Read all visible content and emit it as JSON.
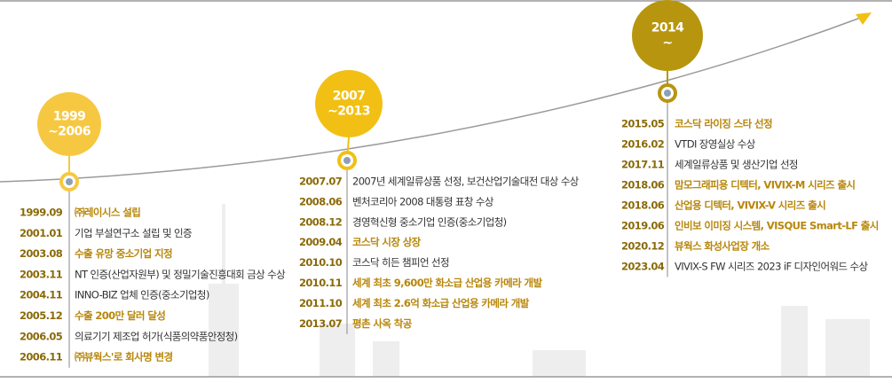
{
  "timeline": {
    "periods": [
      {
        "label": [
          "1999",
          "~2006"
        ],
        "color": "#f6c842",
        "entries": [
          {
            "date": "1999.09",
            "text": "㈜레이시스 설립",
            "highlight": true
          },
          {
            "date": "2001.01",
            "text": "기업 부설연구소 설립 및 인증",
            "highlight": false
          },
          {
            "date": "2003.08",
            "text": "수출 유망 중소기업 지정",
            "highlight": true
          },
          {
            "date": "2003.11",
            "text": "NT 인증(산업자원부) 및 정밀기술진흥대회 금상 수상",
            "highlight": false
          },
          {
            "date": "2004.11",
            "text": "INNO-BIZ 업체 인증(중소기업청)",
            "highlight": false
          },
          {
            "date": "2005.12",
            "text": "수출 200만 달러 달성",
            "highlight": true
          },
          {
            "date": "2006.05",
            "text": "의료기기 제조업 허가(식품의약품안정청)",
            "highlight": false
          },
          {
            "date": "2006.11",
            "text": "㈜뷰웍스'로 회사명 변경",
            "highlight": true
          }
        ]
      },
      {
        "label": [
          "2007",
          "~2013"
        ],
        "color": "#f2c014",
        "entries": [
          {
            "date": "2007.07",
            "text": "2007년 세계일류상품 선정, 보건산업기술대전 대상 수상",
            "highlight": false
          },
          {
            "date": "2008.06",
            "text": "벤처코리아 2008 대통령 표창 수상",
            "highlight": false
          },
          {
            "date": "2008.12",
            "text": "경영혁신형 중소기업 인증(중소기업청)",
            "highlight": false
          },
          {
            "date": "2009.04",
            "text": "코스닥 시장 상장",
            "highlight": true
          },
          {
            "date": "2010.10",
            "text": "코스닥 히든 챔피언 선정",
            "highlight": false
          },
          {
            "date": "2010.11",
            "text": "세계 최초 9,600만 화소급 산업용 카메라 개발",
            "highlight": true
          },
          {
            "date": "2011.10",
            "text": "세계 최초 2.6억 화소급 산업용 카메라 개발",
            "highlight": true
          },
          {
            "date": "2013.07",
            "text": "평촌 사옥 착공",
            "highlight": true
          }
        ]
      },
      {
        "label": [
          "2014",
          "~"
        ],
        "color": "#b8950f",
        "entries": [
          {
            "date": "2015.05",
            "text": "코스닥 라이징 스타 선정",
            "highlight": true
          },
          {
            "date": "2016.02",
            "text": "VTDI 장영실상 수상",
            "highlight": false
          },
          {
            "date": "2017.11",
            "text": "세계일류상품 및 생산기업 선정",
            "highlight": false
          },
          {
            "date": "2018.06",
            "text": "맘모그래피용 디텍터, VIVIX-M 시리즈 출시",
            "highlight": true
          },
          {
            "date": "2018.06",
            "text": "산업용 디텍터, VIVIX-V 시리즈 출시",
            "highlight": true
          },
          {
            "date": "2019.06",
            "text": "인비보 이미징 시스템, VISQUE Smart-LF 출시",
            "highlight": true
          },
          {
            "date": "2020.12",
            "text": "뷰웍스 화성사업장 개소",
            "highlight": true
          },
          {
            "date": "2023.04",
            "text": "VIVIX-S FW 시리즈 2023 iF 디자인어워드 수상",
            "highlight": false
          }
        ]
      }
    ]
  }
}
